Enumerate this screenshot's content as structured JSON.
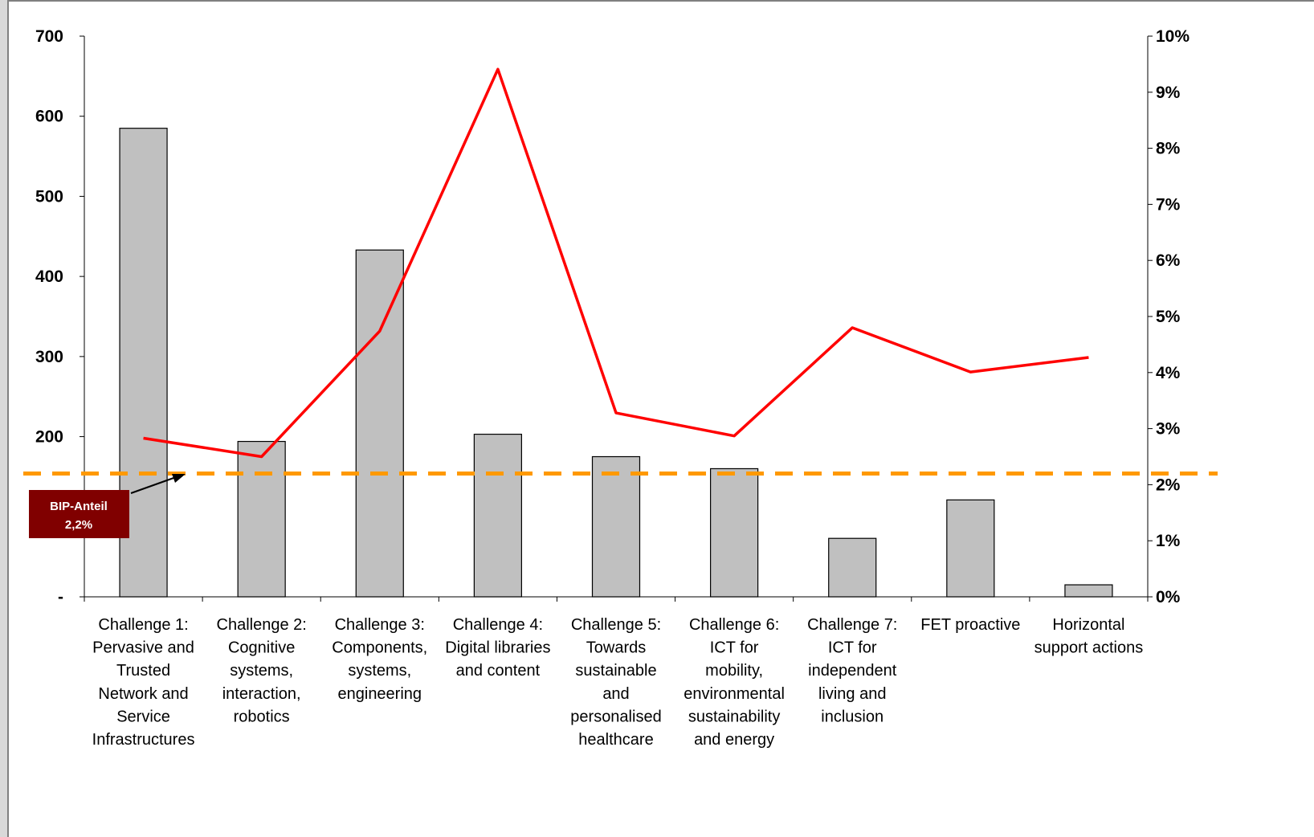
{
  "chart_data": {
    "type": "bar",
    "categories": [
      "Challenge 1: Pervasive and Trusted Network and Service Infrastructures",
      "Challenge 2: Cognitive systems, interaction, robotics",
      "Challenge 3: Components, systems, engineering",
      "Challenge 4: Digital libraries and content",
      "Challenge 5: Towards sustainable and personalised healthcare",
      "Challenge 6: ICT for mobility, environmental sustainability and energy",
      "Challenge 7: ICT for independent living and inclusion",
      "FET proactive",
      "Horizontal support actions"
    ],
    "category_lines": [
      [
        "Challenge 1:",
        "Pervasive and",
        "Trusted",
        "Network and",
        "Service",
        "Infrastructures"
      ],
      [
        "Challenge 2:",
        "Cognitive",
        "systems,",
        "interaction,",
        "robotics"
      ],
      [
        "Challenge 3:",
        "Components,",
        "systems,",
        "engineering"
      ],
      [
        "Challenge 4:",
        "Digital libraries",
        "and content"
      ],
      [
        "Challenge 5:",
        "Towards",
        "sustainable",
        "and",
        "personalised",
        "healthcare"
      ],
      [
        "Challenge 6:",
        "ICT for",
        "mobility,",
        "environmental",
        "sustainability",
        "and energy"
      ],
      [
        "Challenge 7:",
        "ICT for",
        "independent",
        "living and",
        "inclusion"
      ],
      [
        "FET proactive"
      ],
      [
        "Horizontal",
        "support actions"
      ]
    ],
    "series": [
      {
        "type": "bar",
        "axis": "left",
        "values": [
          585,
          194,
          433,
          203,
          175,
          160,
          73,
          121,
          15
        ]
      },
      {
        "type": "line",
        "axis": "right",
        "values": [
          0.0283,
          0.025,
          0.0474,
          0.0941,
          0.0328,
          0.0287,
          0.048,
          0.0401,
          0.0427
        ]
      }
    ],
    "reference_line": {
      "value": 0.022,
      "axis": "right"
    },
    "y_left": {
      "ylim": [
        0,
        700
      ],
      "ticks": [
        0,
        100,
        200,
        300,
        400,
        500,
        600,
        700
      ],
      "tick_labels": [
        "-",
        "",
        "200",
        "300",
        "400",
        "500",
        "600",
        "700"
      ]
    },
    "y_right": {
      "ylim": [
        0,
        0.1
      ],
      "ticks": [
        0,
        0.01,
        0.02,
        0.03,
        0.04,
        0.05,
        0.06,
        0.07,
        0.08,
        0.09,
        0.1
      ],
      "tick_labels": [
        "0%",
        "1%",
        "2%",
        "3%",
        "4%",
        "5%",
        "6%",
        "7%",
        "8%",
        "9%",
        "10%"
      ]
    },
    "annotation": {
      "line1": "BIP-Anteil",
      "line2": "2,2%"
    },
    "title": "",
    "xlabel": "",
    "ylabel": "",
    "grid": false,
    "colors": {
      "bar_fill": "#c0c0c0",
      "bar_stroke": "#000000",
      "line": "#ff0000",
      "reference": "#ff9900",
      "callout_fill": "#800000"
    }
  }
}
